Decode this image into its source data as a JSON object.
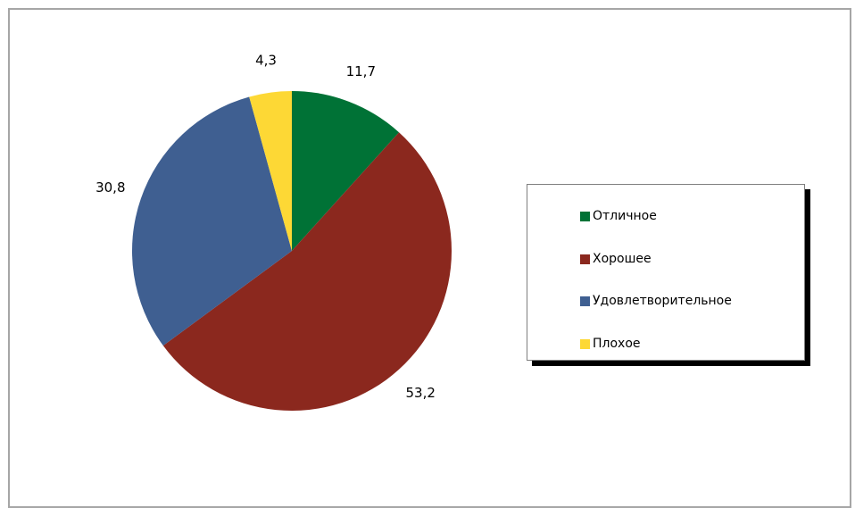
{
  "chart_data": {
    "type": "pie",
    "categories": [
      "Отличное",
      "Хорошее",
      "Удовлетворительное",
      "Плохое"
    ],
    "values": [
      11.7,
      53.2,
      30.8,
      4.3
    ],
    "value_labels": [
      "11,7",
      "53,2",
      "30,8",
      "4,3"
    ],
    "colors": [
      "#007236",
      "#8b281e",
      "#3f5f91",
      "#fdd835"
    ],
    "legend_position": "right",
    "start": "top",
    "direction": "clockwise"
  }
}
